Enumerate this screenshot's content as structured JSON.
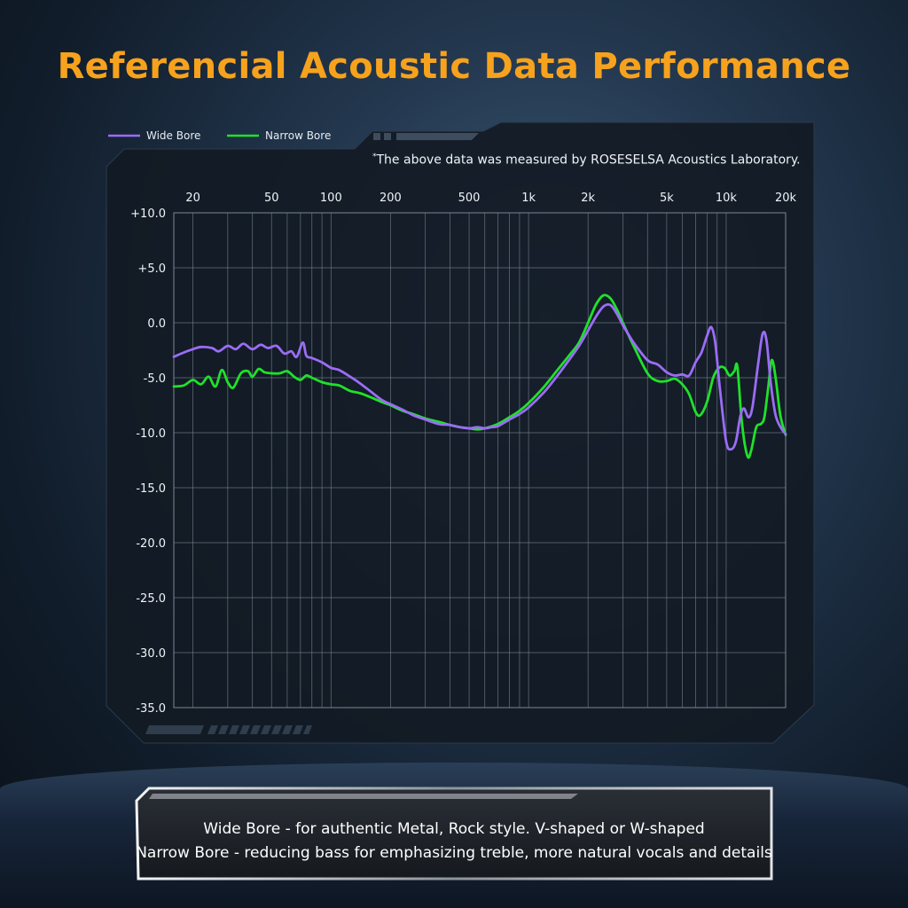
{
  "header": {
    "title": "Referencial Acoustic Data Performance",
    "note_mark": "*",
    "note": "The above data was measured by ROSESELSA Acoustics Laboratory."
  },
  "caption": {
    "line1": "Wide Bore - for authentic Metal, Rock style. V-shaped or W-shaped",
    "line2": "Narrow Bore - reducing bass for emphasizing treble, more natural vocals and details"
  },
  "colors": {
    "title": "#f7a21d",
    "wide": "#9b6cf5",
    "narrow": "#1fe12a",
    "grid": "#7c8793"
  },
  "chart_data": {
    "type": "line",
    "x_scale": "log",
    "xlim": [
      16,
      20000
    ],
    "ylim": [
      -35,
      10
    ],
    "x_ticks": [
      {
        "value": 20,
        "label": "20"
      },
      {
        "value": 50,
        "label": "50"
      },
      {
        "value": 100,
        "label": "100"
      },
      {
        "value": 200,
        "label": "200"
      },
      {
        "value": 500,
        "label": "500"
      },
      {
        "value": 1000,
        "label": "1k"
      },
      {
        "value": 2000,
        "label": "2k"
      },
      {
        "value": 5000,
        "label": "5k"
      },
      {
        "value": 10000,
        "label": "10k"
      },
      {
        "value": 20000,
        "label": "20k"
      }
    ],
    "y_ticks": [
      {
        "value": 10,
        "label": "+10.0"
      },
      {
        "value": 5,
        "label": "+5.0"
      },
      {
        "value": 0,
        "label": "0.0"
      },
      {
        "value": -5,
        "label": "-5.0"
      },
      {
        "value": -10,
        "label": "-10.0"
      },
      {
        "value": -15,
        "label": "-15.0"
      },
      {
        "value": -20,
        "label": "-20.0"
      },
      {
        "value": -25,
        "label": "-25.0"
      },
      {
        "value": -30,
        "label": "-30.0"
      },
      {
        "value": -35,
        "label": "-35.0"
      }
    ],
    "grid": true,
    "legend_position": "top-left",
    "series": [
      {
        "name": "Wide Bore",
        "color": "#9b6cf5",
        "points": [
          [
            16,
            -3.1
          ],
          [
            18,
            -2.7
          ],
          [
            20,
            -2.4
          ],
          [
            22,
            -2.2
          ],
          [
            25,
            -2.3
          ],
          [
            27,
            -2.6
          ],
          [
            30,
            -2.1
          ],
          [
            33,
            -2.4
          ],
          [
            36,
            -1.9
          ],
          [
            40,
            -2.4
          ],
          [
            44,
            -2.0
          ],
          [
            48,
            -2.3
          ],
          [
            53,
            -2.1
          ],
          [
            58,
            -2.8
          ],
          [
            63,
            -2.6
          ],
          [
            67,
            -3.1
          ],
          [
            72,
            -1.8
          ],
          [
            75,
            -3.0
          ],
          [
            80,
            -3.2
          ],
          [
            90,
            -3.6
          ],
          [
            100,
            -4.1
          ],
          [
            110,
            -4.3
          ],
          [
            125,
            -4.9
          ],
          [
            140,
            -5.5
          ],
          [
            160,
            -6.3
          ],
          [
            180,
            -7.0
          ],
          [
            200,
            -7.4
          ],
          [
            230,
            -7.9
          ],
          [
            260,
            -8.4
          ],
          [
            300,
            -8.8
          ],
          [
            350,
            -9.2
          ],
          [
            400,
            -9.3
          ],
          [
            450,
            -9.5
          ],
          [
            500,
            -9.6
          ],
          [
            550,
            -9.5
          ],
          [
            600,
            -9.6
          ],
          [
            650,
            -9.5
          ],
          [
            700,
            -9.4
          ],
          [
            800,
            -8.8
          ],
          [
            900,
            -8.3
          ],
          [
            1000,
            -7.7
          ],
          [
            1200,
            -6.3
          ],
          [
            1400,
            -4.8
          ],
          [
            1600,
            -3.4
          ],
          [
            1800,
            -2.1
          ],
          [
            2000,
            -0.7
          ],
          [
            2200,
            0.6
          ],
          [
            2400,
            1.5
          ],
          [
            2600,
            1.6
          ],
          [
            2800,
            0.8
          ],
          [
            3000,
            -0.2
          ],
          [
            3400,
            -1.8
          ],
          [
            4000,
            -3.4
          ],
          [
            4500,
            -3.8
          ],
          [
            5000,
            -4.5
          ],
          [
            5500,
            -4.8
          ],
          [
            6000,
            -4.7
          ],
          [
            6500,
            -4.8
          ],
          [
            7000,
            -3.6
          ],
          [
            7500,
            -2.7
          ],
          [
            8000,
            -1.2
          ],
          [
            8400,
            -0.4
          ],
          [
            8800,
            -1.8
          ],
          [
            9300,
            -6.0
          ],
          [
            10000,
            -10.8
          ],
          [
            10600,
            -11.5
          ],
          [
            11200,
            -10.8
          ],
          [
            11800,
            -8.5
          ],
          [
            12300,
            -7.8
          ],
          [
            13000,
            -8.6
          ],
          [
            13600,
            -7.6
          ],
          [
            14500,
            -3.8
          ],
          [
            15300,
            -1.0
          ],
          [
            16000,
            -1.6
          ],
          [
            16800,
            -5.4
          ],
          [
            17800,
            -8.4
          ],
          [
            19000,
            -9.6
          ],
          [
            20000,
            -10.1
          ]
        ]
      },
      {
        "name": "Narrow Bore",
        "color": "#1fe12a",
        "points": [
          [
            16,
            -5.8
          ],
          [
            18,
            -5.7
          ],
          [
            20,
            -5.2
          ],
          [
            22,
            -5.6
          ],
          [
            24,
            -4.9
          ],
          [
            26,
            -5.8
          ],
          [
            28,
            -4.3
          ],
          [
            30,
            -5.4
          ],
          [
            32,
            -5.9
          ],
          [
            35,
            -4.6
          ],
          [
            38,
            -4.4
          ],
          [
            40,
            -4.9
          ],
          [
            43,
            -4.2
          ],
          [
            46,
            -4.5
          ],
          [
            50,
            -4.6
          ],
          [
            55,
            -4.6
          ],
          [
            60,
            -4.4
          ],
          [
            65,
            -4.9
          ],
          [
            70,
            -5.2
          ],
          [
            75,
            -4.8
          ],
          [
            80,
            -5.0
          ],
          [
            90,
            -5.4
          ],
          [
            100,
            -5.6
          ],
          [
            110,
            -5.7
          ],
          [
            125,
            -6.2
          ],
          [
            140,
            -6.4
          ],
          [
            160,
            -6.8
          ],
          [
            180,
            -7.2
          ],
          [
            200,
            -7.5
          ],
          [
            230,
            -8.0
          ],
          [
            260,
            -8.3
          ],
          [
            300,
            -8.7
          ],
          [
            350,
            -9.0
          ],
          [
            400,
            -9.3
          ],
          [
            450,
            -9.5
          ],
          [
            500,
            -9.6
          ],
          [
            550,
            -9.7
          ],
          [
            600,
            -9.6
          ],
          [
            700,
            -9.2
          ],
          [
            800,
            -8.6
          ],
          [
            900,
            -8.0
          ],
          [
            1000,
            -7.3
          ],
          [
            1200,
            -5.8
          ],
          [
            1400,
            -4.3
          ],
          [
            1600,
            -3.0
          ],
          [
            1800,
            -1.8
          ],
          [
            2000,
            0.0
          ],
          [
            2200,
            1.7
          ],
          [
            2400,
            2.5
          ],
          [
            2600,
            2.2
          ],
          [
            2800,
            1.2
          ],
          [
            3000,
            0.0
          ],
          [
            3400,
            -2.1
          ],
          [
            4000,
            -4.6
          ],
          [
            4500,
            -5.3
          ],
          [
            5000,
            -5.3
          ],
          [
            5500,
            -5.1
          ],
          [
            6000,
            -5.6
          ],
          [
            6500,
            -6.5
          ],
          [
            7000,
            -8.1
          ],
          [
            7400,
            -8.4
          ],
          [
            8000,
            -7.2
          ],
          [
            8600,
            -5.0
          ],
          [
            9200,
            -4.1
          ],
          [
            9800,
            -4.1
          ],
          [
            10400,
            -4.8
          ],
          [
            11000,
            -4.4
          ],
          [
            11400,
            -4.0
          ],
          [
            12000,
            -9.0
          ],
          [
            12800,
            -12.1
          ],
          [
            13400,
            -11.6
          ],
          [
            14200,
            -9.5
          ],
          [
            15000,
            -9.2
          ],
          [
            15600,
            -8.6
          ],
          [
            16300,
            -6.0
          ],
          [
            17000,
            -3.4
          ],
          [
            17800,
            -5.0
          ],
          [
            18800,
            -8.4
          ],
          [
            20000,
            -10.2
          ]
        ]
      }
    ]
  }
}
